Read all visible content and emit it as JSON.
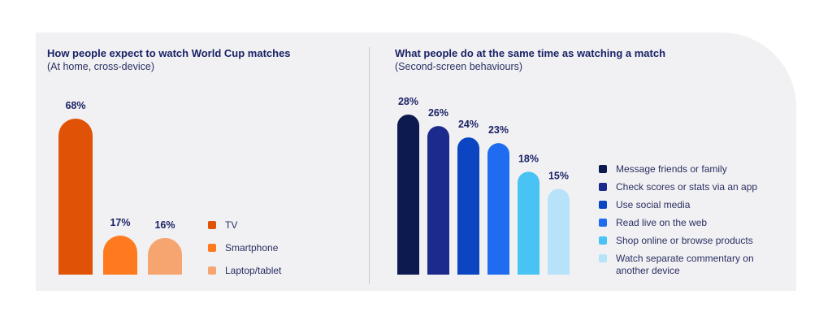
{
  "chart_data": [
    {
      "type": "bar",
      "title": "How people expect to watch World Cup matches",
      "subtitle": "(At home, cross-device)",
      "categories": [
        "TV",
        "Smartphone",
        "Laptop/tablet"
      ],
      "values": [
        68,
        17,
        16
      ],
      "value_labels": [
        "68%",
        "17%",
        "16%"
      ],
      "colors": [
        "#e05307",
        "#ff7a1f",
        "#f7a570"
      ],
      "ylim": [
        0,
        68
      ],
      "legend_position": "right",
      "grid": false
    },
    {
      "type": "bar",
      "title": "What people do at the same time as watching a match",
      "subtitle": "(Second-screen behaviours)",
      "categories": [
        "Message friends or family",
        "Check scores or stats via an app",
        "Use social media",
        "Read live on the web",
        "Shop online or browse products",
        "Watch separate commentary on another device"
      ],
      "values": [
        28,
        26,
        24,
        23,
        18,
        15
      ],
      "value_labels": [
        "28%",
        "26%",
        "24%",
        "23%",
        "18%",
        "15%"
      ],
      "colors": [
        "#0d1a4f",
        "#1b2a8c",
        "#0b45c2",
        "#1f6cf0",
        "#49c3f4",
        "#b7e3fa"
      ],
      "ylim": [
        0,
        28
      ],
      "legend_position": "right",
      "grid": false
    }
  ]
}
